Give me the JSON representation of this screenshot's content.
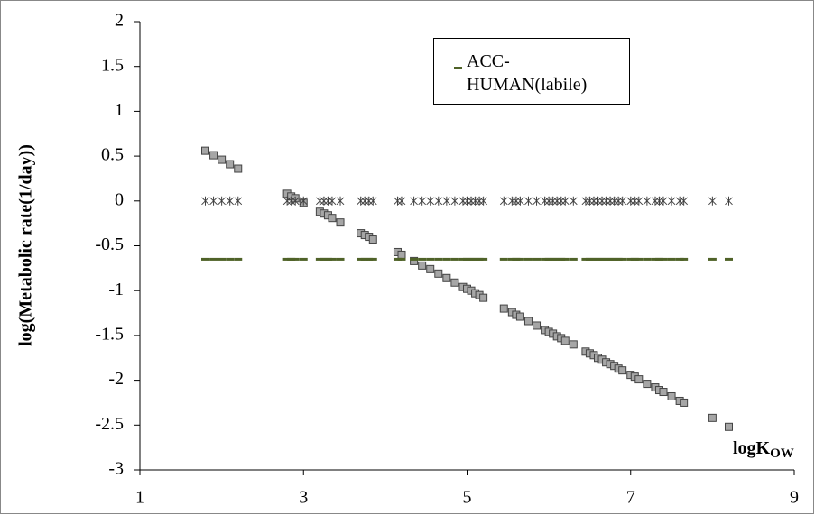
{
  "chart_data": {
    "type": "scatter",
    "ylabel": "log(Metabolic rate(1/day))",
    "xlabel": [
      "logK",
      "OW"
    ],
    "xlim": [
      1,
      9
    ],
    "xticks": [
      1,
      3,
      5,
      7,
      9
    ],
    "ylim": [
      -3,
      2
    ],
    "yticks": [
      -3,
      -2.5,
      -2,
      -1.5,
      -1,
      -0.5,
      0,
      0.5,
      1,
      1.5,
      2
    ],
    "legend_position": "upper right",
    "x": [
      1.8,
      1.9,
      2.0,
      2.1,
      2.2,
      2.8,
      2.85,
      2.9,
      3.0,
      3.2,
      3.25,
      3.3,
      3.35,
      3.45,
      3.7,
      3.75,
      3.8,
      3.85,
      4.15,
      4.2,
      4.35,
      4.45,
      4.55,
      4.65,
      4.75,
      4.85,
      4.95,
      5.0,
      5.05,
      5.1,
      5.15,
      5.2,
      5.45,
      5.55,
      5.6,
      5.65,
      5.75,
      5.85,
      5.95,
      6.0,
      6.05,
      6.1,
      6.15,
      6.2,
      6.3,
      6.45,
      6.5,
      6.55,
      6.6,
      6.65,
      6.7,
      6.75,
      6.8,
      6.85,
      6.9,
      7.0,
      7.05,
      7.1,
      7.2,
      7.3,
      7.35,
      7.4,
      7.5,
      7.6,
      7.65,
      8.0,
      8.2
    ],
    "series": [
      {
        "marker": "square",
        "color": "#a6a6a6",
        "values": [
          0.56,
          0.51,
          0.46,
          0.41,
          0.36,
          0.08,
          0.05,
          0.03,
          -0.02,
          -0.12,
          -0.14,
          -0.16,
          -0.19,
          -0.24,
          -0.36,
          -0.38,
          -0.4,
          -0.43,
          -0.57,
          -0.6,
          -0.67,
          -0.72,
          -0.76,
          -0.81,
          -0.86,
          -0.91,
          -0.96,
          -0.98,
          -1.0,
          -1.03,
          -1.05,
          -1.08,
          -1.2,
          -1.24,
          -1.27,
          -1.29,
          -1.34,
          -1.39,
          -1.44,
          -1.46,
          -1.48,
          -1.51,
          -1.53,
          -1.56,
          -1.6,
          -1.68,
          -1.7,
          -1.72,
          -1.75,
          -1.77,
          -1.8,
          -1.82,
          -1.84,
          -1.87,
          -1.89,
          -1.94,
          -1.96,
          -1.99,
          -2.04,
          -2.08,
          -2.11,
          -2.13,
          -2.18,
          -2.23,
          -2.25,
          -2.42,
          -2.52
        ]
      },
      {
        "marker": "star",
        "color": "#404040",
        "values": [
          0,
          0,
          0,
          0,
          0,
          0,
          0,
          0,
          0,
          0,
          0,
          0,
          0,
          0,
          0,
          0,
          0,
          0,
          0,
          0,
          0,
          0,
          0,
          0,
          0,
          0,
          0,
          0,
          0,
          0,
          0,
          0,
          0,
          0,
          0,
          0,
          0,
          0,
          0,
          0,
          0,
          0,
          0,
          0,
          0,
          0,
          0,
          0,
          0,
          0,
          0,
          0,
          0,
          0,
          0,
          0,
          0,
          0,
          0,
          0,
          0,
          0,
          0,
          0,
          0,
          0,
          0
        ]
      },
      {
        "name": "ACC-HUMAN(labile)",
        "marker": "dash",
        "color": "#4f6228",
        "values": [
          -0.65,
          -0.65,
          -0.65,
          -0.65,
          -0.65,
          -0.65,
          -0.65,
          -0.65,
          -0.65,
          -0.65,
          -0.65,
          -0.65,
          -0.65,
          -0.65,
          -0.65,
          -0.65,
          -0.65,
          -0.65,
          -0.65,
          -0.65,
          -0.65,
          -0.65,
          -0.65,
          -0.65,
          -0.65,
          -0.65,
          -0.65,
          -0.65,
          -0.65,
          -0.65,
          -0.65,
          -0.65,
          -0.65,
          -0.65,
          -0.65,
          -0.65,
          -0.65,
          -0.65,
          -0.65,
          -0.65,
          -0.65,
          -0.65,
          -0.65,
          -0.65,
          -0.65,
          -0.65,
          -0.65,
          -0.65,
          -0.65,
          -0.65,
          -0.65,
          -0.65,
          -0.65,
          -0.65,
          -0.65,
          -0.65,
          -0.65,
          -0.65,
          -0.65,
          -0.65,
          -0.65,
          -0.65,
          -0.65,
          -0.65,
          -0.65,
          -0.65,
          -0.65
        ]
      }
    ]
  }
}
